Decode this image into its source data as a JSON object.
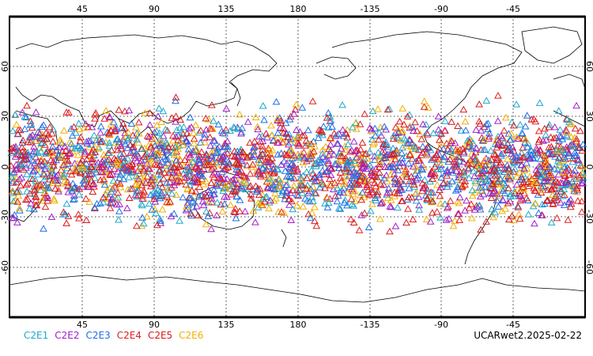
{
  "top_lon_ticks": [
    "45",
    "90",
    "135",
    "180",
    "-135",
    "-90",
    "-45"
  ],
  "bottom_lon_ticks": [
    "45",
    "90",
    "135",
    "180",
    "-135",
    "-90",
    "-45"
  ],
  "left_lat_ticks": [
    "60",
    "30",
    "0",
    "-30",
    "-60"
  ],
  "right_lat_ticks": [
    "60",
    "30",
    "0",
    "-30",
    "-60"
  ],
  "legend": [
    {
      "label": "C2E1",
      "color": "#1fa8c9"
    },
    {
      "label": "C2E2",
      "color": "#a020c8"
    },
    {
      "label": "C2E3",
      "color": "#1e6ee6"
    },
    {
      "label": "C2E4",
      "color": "#e02020"
    },
    {
      "label": "C2E5",
      "color": "#d81818"
    },
    {
      "label": "C2E6",
      "color": "#f0b000"
    }
  ],
  "footer": "UCARwet2.2025-02-22",
  "observations": {
    "lat_range": [
      -45,
      45
    ],
    "marker": "triangle"
  }
}
